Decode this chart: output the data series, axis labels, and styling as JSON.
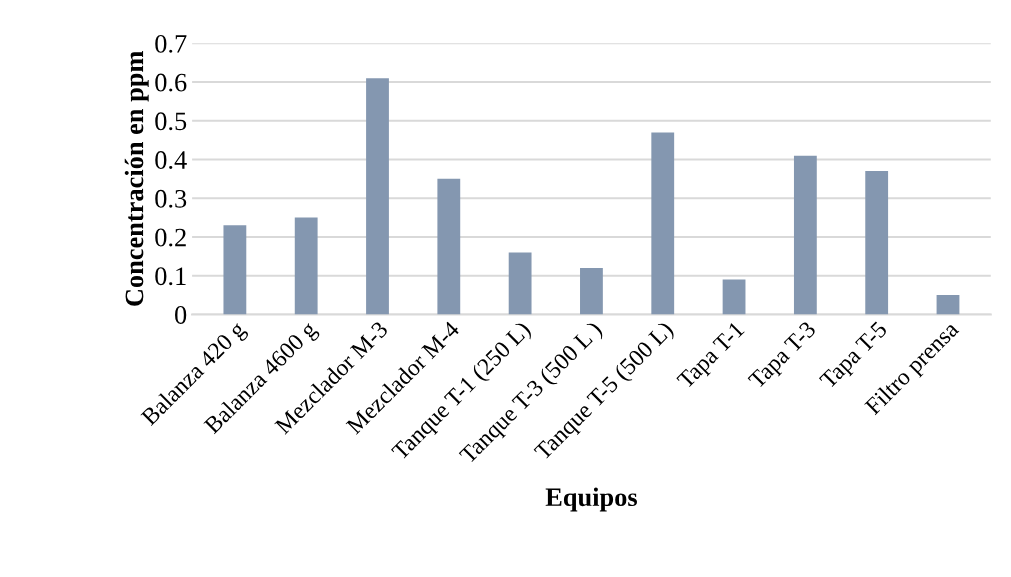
{
  "chart_data": {
    "type": "bar",
    "xlabel": "Equipos",
    "ylabel": "Concentración en ppm",
    "categories": [
      "Balanza 420 g",
      "Balanza 4600 g",
      "Mezclador M-3",
      "Mezclador M-4",
      "Tanque T-1 (250 L)",
      "Tanque T-3 (500 L )",
      "Tanque T-5 (500 L)",
      "Tapa T-1",
      "Tapa T-3",
      "Tapa T-5",
      "Filtro prensa"
    ],
    "values": [
      0.23,
      0.25,
      0.61,
      0.35,
      0.16,
      0.12,
      0.47,
      0.09,
      0.41,
      0.37,
      0.05
    ],
    "color": "#8497b0",
    "ylim": [
      0,
      0.7
    ],
    "yticks": [
      0,
      0.1,
      0.2,
      0.3,
      0.4,
      0.5,
      0.6,
      0.7
    ],
    "grid": "y"
  }
}
